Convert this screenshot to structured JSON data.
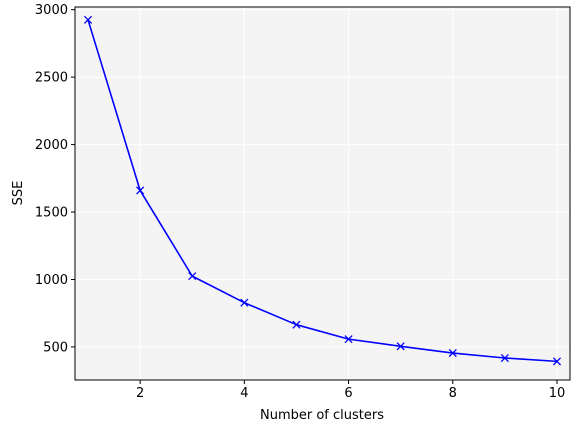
{
  "chart_data": {
    "type": "line",
    "title": "",
    "xlabel": "Number of clusters",
    "ylabel": "SSE",
    "xlim": [
      0.75,
      10.25
    ],
    "ylim": [
      255,
      3020
    ],
    "xticks": [
      2,
      4,
      6,
      8,
      10
    ],
    "yticks": [
      500,
      1000,
      1500,
      2000,
      2500,
      3000
    ],
    "grid": true,
    "marker": "x",
    "line_color": "#0000ff",
    "background_color": "#f4f4f4",
    "grid_color": "#ffffff",
    "series": [
      {
        "x": [
          1,
          2,
          3,
          4,
          5,
          6,
          7,
          8,
          9,
          10
        ],
        "values": [
          2925,
          1660,
          1025,
          828,
          665,
          558,
          505,
          455,
          418,
          393
        ]
      }
    ]
  }
}
